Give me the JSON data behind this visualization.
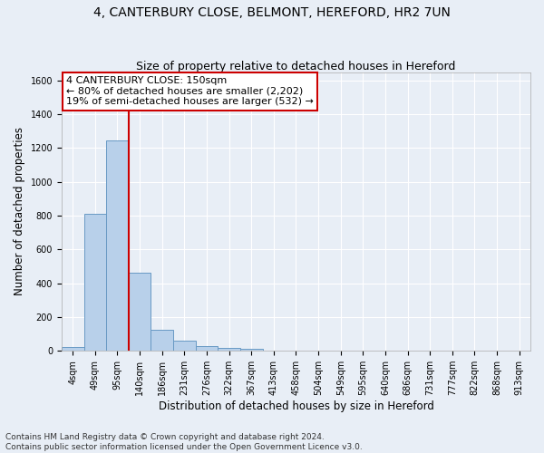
{
  "title": "4, CANTERBURY CLOSE, BELMONT, HEREFORD, HR2 7UN",
  "subtitle": "Size of property relative to detached houses in Hereford",
  "xlabel": "Distribution of detached houses by size in Hereford",
  "ylabel": "Number of detached properties",
  "footer1": "Contains HM Land Registry data © Crown copyright and database right 2024.",
  "footer2": "Contains public sector information licensed under the Open Government Licence v3.0.",
  "annotation_line1": "4 CANTERBURY CLOSE: 150sqm",
  "annotation_line2": "← 80% of detached houses are smaller (2,202)",
  "annotation_line3": "19% of semi-detached houses are larger (532) →",
  "bar_labels": [
    "4sqm",
    "49sqm",
    "95sqm",
    "140sqm",
    "186sqm",
    "231sqm",
    "276sqm",
    "322sqm",
    "367sqm",
    "413sqm",
    "458sqm",
    "504sqm",
    "549sqm",
    "595sqm",
    "640sqm",
    "686sqm",
    "731sqm",
    "777sqm",
    "822sqm",
    "868sqm",
    "913sqm"
  ],
  "bar_values": [
    25,
    810,
    1245,
    460,
    125,
    60,
    27,
    18,
    12,
    0,
    0,
    0,
    0,
    0,
    0,
    0,
    0,
    0,
    0,
    0,
    0
  ],
  "bar_color": "#b8d0ea",
  "bar_edge_color": "#6899c4",
  "vline_x": 2.5,
  "vline_color": "#cc0000",
  "ylim": [
    0,
    1650
  ],
  "yticks": [
    0,
    200,
    400,
    600,
    800,
    1000,
    1200,
    1400,
    1600
  ],
  "bg_color": "#e8eef6",
  "axes_bg_color": "#e8eef6",
  "grid_color": "#ffffff",
  "title_fontsize": 10,
  "subtitle_fontsize": 9,
  "axis_label_fontsize": 8.5,
  "tick_fontsize": 7,
  "footer_fontsize": 6.5,
  "annot_fontsize": 8
}
